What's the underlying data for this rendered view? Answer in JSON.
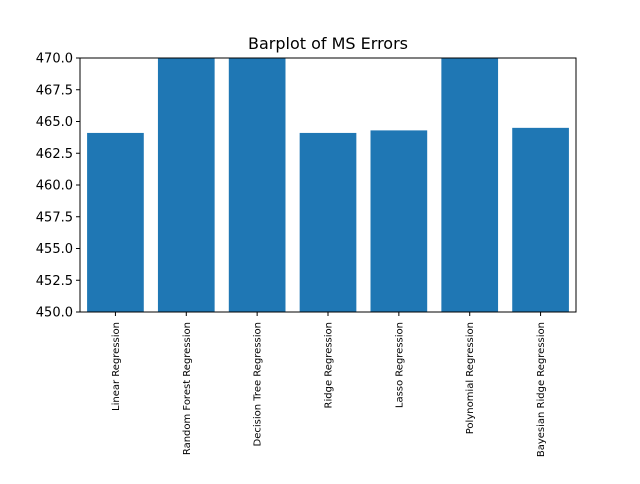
{
  "chart_data": {
    "type": "bar",
    "title": "Barplot of MS Errors",
    "xlabel": "",
    "ylabel": "",
    "categories": [
      "Linear Regression",
      "Random Forest Regression",
      "Decision Tree Regression",
      "Ridge Regression",
      "Lasso Regression",
      "Polynomial Regression",
      "Bayesian Ridge Regression"
    ],
    "values": [
      464.1,
      470.0,
      470.0,
      464.1,
      464.3,
      470.0,
      464.5
    ],
    "ylim": [
      450,
      470
    ],
    "yticks": [
      450.0,
      452.5,
      455.0,
      457.5,
      460.0,
      462.5,
      465.0,
      467.5,
      470.0
    ],
    "ytick_labels": [
      "450.0",
      "452.5",
      "455.0",
      "457.5",
      "460.0",
      "462.5",
      "465.0",
      "467.5",
      "470.0"
    ],
    "bar_color": "#1f77b4",
    "grid": false,
    "legend": "none"
  }
}
